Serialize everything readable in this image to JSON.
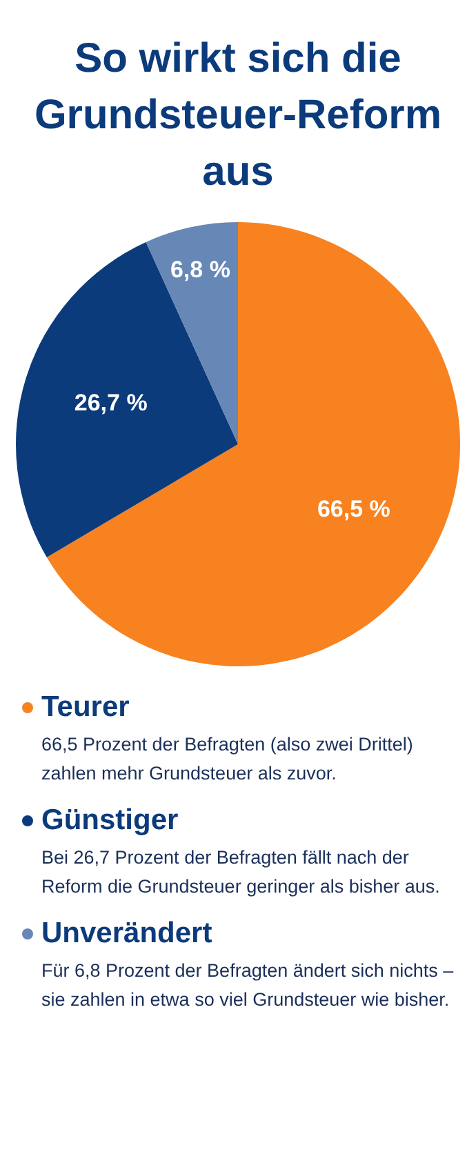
{
  "chart_data": {
    "type": "pie",
    "title": "So wirkt sich die Grundsteuer-Reform aus",
    "categories": [
      "Teurer",
      "Günstiger",
      "Unverändert"
    ],
    "values": [
      66.5,
      26.7,
      6.8
    ],
    "colors": [
      "#f7821f",
      "#0c3b7c",
      "#6787b7"
    ],
    "value_labels": [
      "66,5 %",
      "26,7 %",
      "6,8 %"
    ],
    "legend": "bottom",
    "annotations": [
      "66,5 Prozent der Befragten (also zwei Drittel) zahlen mehr Grundsteuer als zuvor.",
      "Bei 26,7 Prozent der Befragten fällt nach der Reform die Grundsteuer geringer als bisher aus.",
      "Für 6,8 Prozent der Befragten ändert sich nichts – sie zahlen in etwa so viel Grundsteuer wie bisher."
    ]
  }
}
